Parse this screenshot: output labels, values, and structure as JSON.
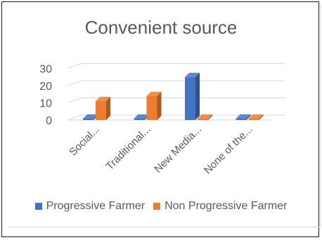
{
  "chart_data": {
    "type": "bar",
    "title": "Convenient source",
    "categories": [
      "Social...",
      "Traditional...",
      "New Media...",
      "None of the..."
    ],
    "series": [
      {
        "name": "Progressive Farmer",
        "color": "#4472C4",
        "values": [
          0,
          0,
          25,
          0
        ]
      },
      {
        "name": "Non Progressive Farmer",
        "color": "#ED7D31",
        "values": [
          11,
          14,
          0,
          0
        ]
      }
    ],
    "ylim": [
      0,
      30
    ],
    "yticks": [
      0,
      10,
      20,
      30
    ],
    "grid": true,
    "legend_position": "bottom",
    "style": "3d-clustered-column"
  }
}
